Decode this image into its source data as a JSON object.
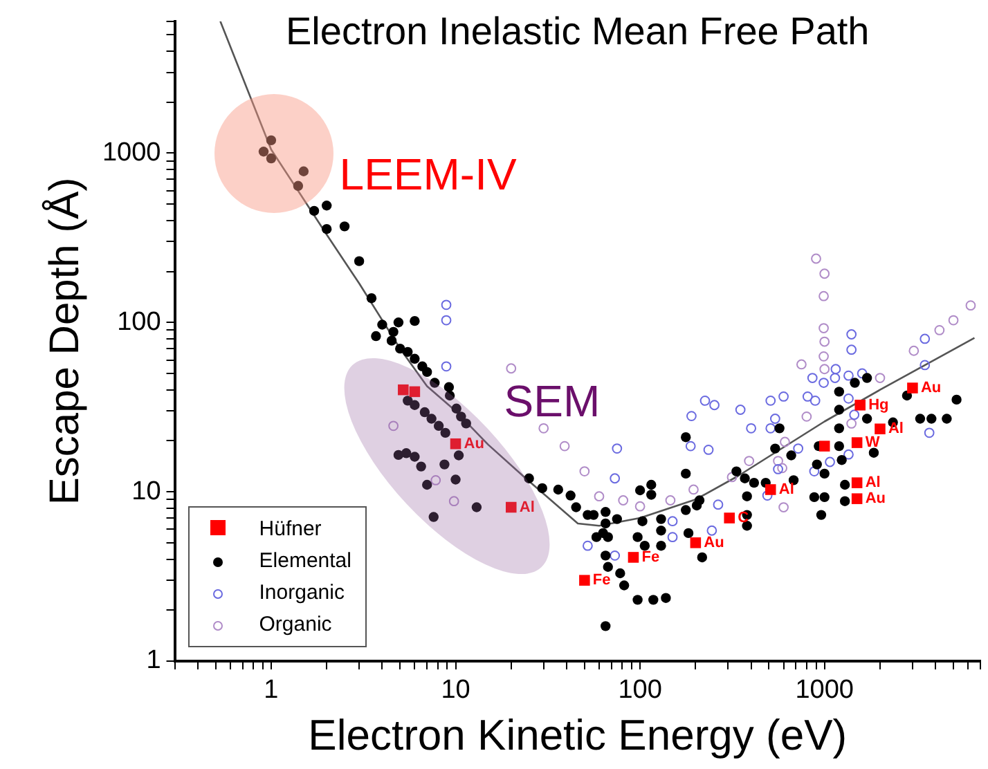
{
  "chart_data": {
    "type": "scatter",
    "title": "Electron Inelastic Mean Free Path",
    "xlabel": "Electron Kinetic Energy (eV)",
    "ylabel": "Escape Depth (Å)",
    "log": "xy",
    "grid": false,
    "legend": "bottom left",
    "xlim": [
      0.3,
      7000
    ],
    "ylim": [
      1,
      6000
    ],
    "xticks": [
      {
        "value": 0.3,
        "label": null
      },
      {
        "value": 0.4,
        "label": null
      },
      {
        "value": 0.5,
        "label": null
      },
      {
        "value": 0.6,
        "label": null
      },
      {
        "value": 0.7,
        "label": null
      },
      {
        "value": 0.8,
        "label": null
      },
      {
        "value": 0.9,
        "label": null
      },
      1,
      {
        "value": 2,
        "label": null
      },
      {
        "value": 3,
        "label": null
      },
      {
        "value": 4,
        "label": null
      },
      {
        "value": 5,
        "label": null
      },
      {
        "value": 6,
        "label": null
      },
      {
        "value": 7,
        "label": null
      },
      {
        "value": 8,
        "label": null
      },
      {
        "value": 9,
        "label": null
      },
      10,
      {
        "value": 20,
        "label": null
      },
      {
        "value": 30,
        "label": null
      },
      {
        "value": 40,
        "label": null
      },
      {
        "value": 50,
        "label": null
      },
      {
        "value": 60,
        "label": null
      },
      {
        "value": 70,
        "label": null
      },
      {
        "value": 80,
        "label": null
      },
      {
        "value": 90,
        "label": null
      },
      100,
      {
        "value": 200,
        "label": null
      },
      {
        "value": 300,
        "label": null
      },
      {
        "value": 400,
        "label": null
      },
      {
        "value": 500,
        "label": null
      },
      {
        "value": 600,
        "label": null
      },
      {
        "value": 700,
        "label": null
      },
      {
        "value": 800,
        "label": null
      },
      {
        "value": 900,
        "label": null
      },
      1000,
      {
        "value": 2000,
        "label": null
      },
      {
        "value": 3000,
        "label": null
      },
      {
        "value": 4000,
        "label": null
      },
      {
        "value": 5000,
        "label": null
      },
      {
        "value": 6000,
        "label": null
      },
      {
        "value": 7000,
        "label": null
      }
    ],
    "yticks": [
      1,
      {
        "value": 2,
        "label": null
      },
      {
        "value": 3,
        "label": null
      },
      {
        "value": 4,
        "label": null
      },
      {
        "value": 5,
        "label": null
      },
      {
        "value": 6,
        "label": null
      },
      {
        "value": 7,
        "label": null
      },
      {
        "value": 8,
        "label": null
      },
      {
        "value": 9,
        "label": null
      },
      10,
      {
        "value": 20,
        "label": null
      },
      {
        "value": 30,
        "label": null
      },
      {
        "value": 40,
        "label": null
      },
      {
        "value": 50,
        "label": null
      },
      {
        "value": 60,
        "label": null
      },
      {
        "value": 70,
        "label": null
      },
      {
        "value": 80,
        "label": null
      },
      {
        "value": 90,
        "label": null
      },
      100,
      {
        "value": 200,
        "label": null
      },
      {
        "value": 300,
        "label": null
      },
      {
        "value": 400,
        "label": null
      },
      {
        "value": 500,
        "label": null
      },
      {
        "value": 600,
        "label": null
      },
      {
        "value": 700,
        "label": null
      },
      {
        "value": 800,
        "label": null
      },
      {
        "value": 900,
        "label": null
      },
      1000,
      {
        "value": 2000,
        "label": null
      },
      {
        "value": 3000,
        "label": null
      },
      {
        "value": 4000,
        "label": null
      },
      {
        "value": 5000,
        "label": null
      },
      {
        "value": 6000,
        "label": null
      }
    ],
    "series": [
      {
        "name": "Hüfner",
        "marker": "square",
        "color": "#ff0000",
        "x": [
          5.2,
          6.0,
          10,
          20,
          50,
          92,
          200,
          305,
          510,
          1000,
          1560,
          1500,
          2000,
          1500,
          1500,
          3000
        ],
        "values": [
          40,
          39,
          19.2,
          8.1,
          3.0,
          4.1,
          5.0,
          7.0,
          10.3,
          18.6,
          32.5,
          19.5,
          23.5,
          11.3,
          9.1,
          41
        ]
      },
      {
        "name": "Elemental",
        "marker": "circle",
        "color": "#000000",
        "x": [
          0.91,
          1.0,
          1.0,
          1.5,
          1.4,
          1.71,
          2.0,
          2.0,
          2.5,
          3.0,
          3.5,
          3.7,
          4.0,
          4.6,
          4.9,
          6.0,
          4.5,
          5.0,
          5.5,
          6.0,
          6.6,
          7.0,
          7.7,
          9.2,
          9.3,
          5.5,
          6.0,
          6.8,
          7.4,
          8.1,
          8.8,
          10.4,
          10.1,
          10.7,
          11.4,
          4.9,
          5.4,
          6.0,
          6.5,
          7.0,
          7.6,
          8.7,
          10,
          13,
          25,
          29.5,
          36,
          42,
          45,
          52,
          56,
          65,
          65,
          63,
          58,
          67,
          65,
          67,
          78,
          82,
          97,
          118,
          138,
          65,
          75,
          103,
          100,
          115,
          115,
          130,
          130,
          130,
          106,
          97,
          177,
          177,
          177,
          183,
          210,
          203,
          217,
          333,
          370,
          380,
          380,
          380,
          415,
          480,
          570,
          540,
          680,
          660,
          880,
          1000,
          960,
          910,
          930,
          1000,
          1200,
          1200,
          1200,
          1200,
          1240,
          1290,
          1290,
          1460,
          1700,
          1700,
          1850,
          2350,
          2800,
          3300,
          3800,
          4600,
          5200
        ],
        "values": [
          1020,
          1190,
          930,
          780,
          640,
          456,
          490,
          356,
          369,
          230,
          139,
          83,
          97,
          88,
          100,
          102,
          78,
          70,
          67,
          61,
          55,
          51,
          44,
          41.5,
          37,
          34.5,
          32.5,
          29.5,
          27,
          24.5,
          22.3,
          16.4,
          31,
          27.8,
          25.3,
          16.5,
          16.9,
          16.1,
          14.1,
          11,
          7.1,
          14.5,
          11.8,
          8.1,
          12,
          10.5,
          10.3,
          9.5,
          8.1,
          7.3,
          7.3,
          7.6,
          6.5,
          5.7,
          5.4,
          5.4,
          4.2,
          3.6,
          3.3,
          2.8,
          2.3,
          2.3,
          2.36,
          1.61,
          6.9,
          6.7,
          10.2,
          11,
          9.6,
          6.9,
          5.9,
          4.8,
          4.8,
          5.4,
          21,
          12.8,
          7.8,
          5.7,
          8.9,
          8.3,
          4.1,
          13.2,
          12,
          9.4,
          7.3,
          6.3,
          11.3,
          11.3,
          23.7,
          18,
          11.7,
          16.4,
          9.3,
          9.3,
          7.3,
          14.5,
          18.6,
          12.8,
          39,
          30.5,
          23.7,
          18.6,
          15.4,
          11,
          8.8,
          44,
          47,
          27,
          17,
          25.7,
          37,
          27,
          27,
          27,
          35
        ]
      },
      {
        "name": "Inorganic",
        "marker": "circle",
        "color": "#6a6ae0",
        "x": [
          8.9,
          8.9,
          8.9,
          73,
          75,
          52,
          73,
          150,
          150,
          188,
          190,
          225,
          253,
          235,
          265,
          245,
          350,
          400,
          510,
          510,
          540,
          600,
          560,
          490,
          720,
          810,
          890,
          860,
          990,
          1150,
          1140,
          880,
          1070,
          1400,
          1400,
          1350,
          1600,
          1350,
          1450,
          1350,
          3500,
          3500,
          3700
        ],
        "values": [
          127,
          103,
          55,
          12,
          18,
          4.8,
          4.2,
          6.7,
          5.4,
          18.6,
          28,
          34.5,
          32.5,
          17.7,
          8.4,
          5.9,
          30.5,
          23.7,
          34.5,
          23.7,
          27,
          36.5,
          13.6,
          9.5,
          18,
          36.5,
          34.5,
          47,
          44,
          53,
          47,
          13.2,
          15,
          85,
          69,
          48.5,
          50,
          35.5,
          28.5,
          16.6,
          80,
          56,
          22.3
        ]
      },
      {
        "name": "Organic",
        "marker": "circle",
        "color": "#b08cc8",
        "x": [
          20,
          30,
          4.6,
          7.8,
          9.8,
          39,
          50,
          60,
          81,
          100,
          146,
          195,
          315,
          390,
          590,
          600,
          560,
          610,
          750,
          800,
          900,
          1000,
          990,
          990,
          1000,
          990,
          1000,
          1400,
          2000,
          3050,
          4200,
          5000,
          6200
        ],
        "values": [
          53.5,
          23.7,
          24.5,
          11.7,
          8.8,
          18.6,
          13.2,
          9.4,
          8.9,
          8.2,
          8.9,
          10.3,
          12.2,
          15.2,
          13.8,
          8.1,
          15.2,
          19.7,
          56.5,
          27.8,
          238,
          194,
          143,
          92.5,
          77,
          63,
          53,
          25.3,
          47,
          68,
          90,
          103,
          126
        ]
      },
      {
        "type": "line",
        "marker": "none",
        "line_style": "solid",
        "color": "#555555",
        "x": [
          0.53,
          1,
          2,
          3,
          5,
          7,
          10,
          15,
          24,
          46,
          60,
          100,
          200,
          340,
          1000,
          2000,
          6500
        ],
        "values": [
          6000,
          1050,
          330,
          170,
          70,
          42,
          30,
          19,
          12,
          6.5,
          6.3,
          7,
          9,
          12.4,
          26,
          40,
          81
        ]
      }
    ],
    "annotations": [
      "LEEM-IV",
      "SEM",
      {
        "text": "Au",
        "x": 10,
        "y": 19.2
      },
      {
        "text": "Al",
        "x": 20,
        "y": 8.1
      },
      {
        "text": "Fe",
        "x": 50,
        "y": 3.0
      },
      {
        "text": "Fe",
        "x": 92,
        "y": 4.1
      },
      {
        "text": "Au",
        "x": 200,
        "y": 5.0
      },
      {
        "text": "C",
        "x": 305,
        "y": 7.0
      },
      {
        "text": "Al",
        "x": 510,
        "y": 10.3
      },
      {
        "text": "Hg",
        "x": 1560,
        "y": 32.5
      },
      {
        "text": "W",
        "x": 1500,
        "y": 19.5
      },
      {
        "text": "Al",
        "x": 2000,
        "y": 23.5
      },
      {
        "text": "Al",
        "x": 1500,
        "y": 11.3
      },
      {
        "text": "Au",
        "x": 1500,
        "y": 9.1
      },
      {
        "text": "Au",
        "x": 3000,
        "y": 41
      }
    ]
  }
}
